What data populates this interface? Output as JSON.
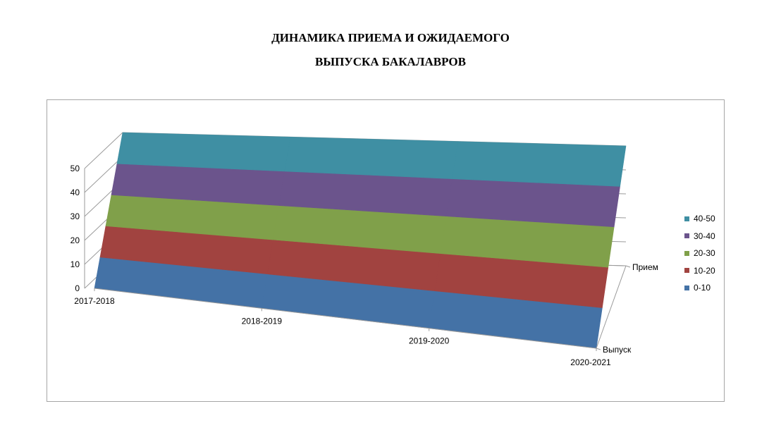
{
  "title": {
    "line1": "ДИНАМИКА ПРИЕМА И ОЖИДАЕМОГО",
    "line2": "ВЫПУСКА БАКАЛАВРОВ"
  },
  "chart_data": {
    "type": "area",
    "subtype": "3d-surface",
    "title": "ДИНАМИКА ПРИЕМА И ОЖИДАЕМОГО ВЫПУСКА БАКАЛАВРОВ",
    "categories": [
      "2017-2018",
      "2018-2019",
      "2019-2020",
      "2020-2021"
    ],
    "series": [
      {
        "name": "Выпуск",
        "values": [
          0,
          0,
          0,
          0
        ]
      },
      {
        "name": "Прием",
        "values": [
          50,
          50,
          50,
          50
        ]
      }
    ],
    "zlim": [
      0,
      50
    ],
    "z_ticks": [
      "0",
      "10",
      "20",
      "30",
      "40",
      "50"
    ],
    "bands": [
      {
        "name": "0-10",
        "color": "#4472a6"
      },
      {
        "name": "10-20",
        "color": "#a14340"
      },
      {
        "name": "20-30",
        "color": "#80a04a"
      },
      {
        "name": "30-40",
        "color": "#6b548c"
      },
      {
        "name": "40-50",
        "color": "#3f8fa3"
      }
    ],
    "legend": [
      "40-50",
      "30-40",
      "20-30",
      "10-20",
      "0-10"
    ],
    "legend_position": "right",
    "grid": true
  }
}
